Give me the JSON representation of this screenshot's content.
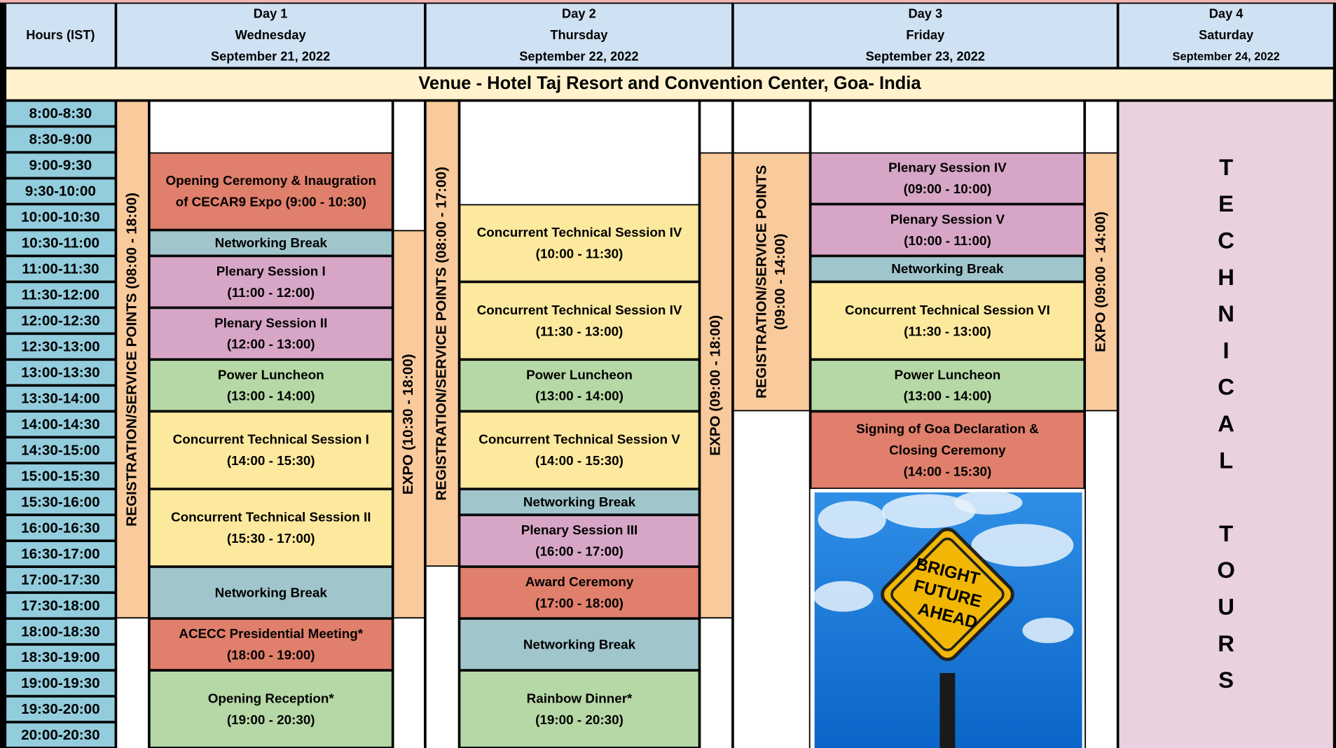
{
  "header": {
    "hours_label": "Hours (IST)",
    "days": [
      {
        "lines": [
          "Day 1",
          "Wednesday",
          "September 21, 2022"
        ]
      },
      {
        "lines": [
          "Day 2",
          "Thursday",
          "September 22, 2022"
        ]
      },
      {
        "lines": [
          "Day 3",
          "Friday",
          "September 23, 2022"
        ]
      },
      {
        "lines": [
          "Day 4",
          "Saturday",
          "September 24, 2022"
        ]
      }
    ]
  },
  "venue": "Venue - Hotel Taj Resort and Convention Center, Goa- India",
  "time_slots": [
    "8:00-8:30",
    "8:30-9:00",
    "9:00-9:30",
    "9:30-10:00",
    "10:00-10:30",
    "10:30-11:00",
    "11:00-11:30",
    "11:30-12:00",
    "12:00-12:30",
    "12:30-13:00",
    "13:00-13:30",
    "13:30-14:00",
    "14:00-14:30",
    "14:30-15:00",
    "15:00-15:30",
    "15:30-16:00",
    "16:00-16:30",
    "16:30-17:00",
    "17:00-17:30",
    "17:30-18:00",
    "18:00-18:30",
    "18:30-19:00",
    "19:00-19:30",
    "19:30-20:00",
    "20:00-20:30"
  ],
  "blocks": [
    {
      "lines": [
        "REGISTRATION/SERVICE POINTS (08:00 - 18:00)"
      ]
    },
    {
      "lines": [
        "Opening Ceremony & Inaugration",
        "of CECAR9 Expo (9:00 - 10:30)"
      ]
    },
    {
      "lines": [
        "Networking Break"
      ]
    },
    {
      "lines": [
        "Plenary Session I",
        "(11:00 - 12:00)"
      ]
    },
    {
      "lines": [
        "Plenary Session II",
        "(12:00 - 13:00)"
      ]
    },
    {
      "lines": [
        "Power Luncheon",
        "(13:00 - 14:00)"
      ]
    },
    {
      "lines": [
        "Concurrent Technical Session I",
        "(14:00 - 15:30)"
      ]
    },
    {
      "lines": [
        "Concurrent Technical Session II",
        "(15:30 - 17:00)"
      ]
    },
    {
      "lines": [
        "Networking Break"
      ]
    },
    {
      "lines": [
        "ACECC Presidential Meeting*",
        "(18:00 - 19:00)"
      ]
    },
    {
      "lines": [
        "Opening Reception*",
        "(19:00 - 20:30)"
      ]
    },
    {
      "lines": [
        "EXPO (10:30 - 18:00)"
      ]
    },
    {
      "lines": [
        "REGISTRATION/SERVICE POINTS (08:00 - 17:00)"
      ]
    },
    {
      "lines": [
        "Concurrent Technical Session IV",
        "(10:00 - 11:30)"
      ]
    },
    {
      "lines": [
        "Concurrent Technical Session IV",
        "(11:30 - 13:00)"
      ]
    },
    {
      "lines": [
        "Power Luncheon",
        "(13:00 - 14:00)"
      ]
    },
    {
      "lines": [
        "Concurrent Technical Session V",
        "(14:00 - 15:30)"
      ]
    },
    {
      "lines": [
        "Networking Break"
      ]
    },
    {
      "lines": [
        "Plenary Session III",
        "(16:00 - 17:00)"
      ]
    },
    {
      "lines": [
        "Award Ceremony",
        "(17:00 - 18:00)"
      ]
    },
    {
      "lines": [
        "Networking Break"
      ]
    },
    {
      "lines": [
        "Rainbow Dinner*",
        "(19:00 - 20:30)"
      ]
    },
    {
      "lines": [
        "EXPO (09:00 - 18:00)"
      ]
    },
    {
      "lines": [
        "REGISTRATION/SERVICE POINTS",
        "(09:00 - 14:00)"
      ]
    },
    {
      "lines": [
        "Plenary Session IV",
        "(09:00 - 10:00)"
      ]
    },
    {
      "lines": [
        "Plenary Session V",
        "(10:00 - 11:00)"
      ]
    },
    {
      "lines": [
        "Networking Break"
      ]
    },
    {
      "lines": [
        "Concurrent Technical Session VI",
        "(11:30 - 13:00)"
      ]
    },
    {
      "lines": [
        "Power Luncheon",
        "(13:00 - 14:00)"
      ]
    },
    {
      "lines": [
        "Signing of Goa Declaration &",
        "Closing Ceremony",
        "(14:00 - 15:30)"
      ]
    },
    {
      "lines": [
        "EXPO (09:00 - 14:00)"
      ]
    }
  ],
  "tours": "TECHNICAL TOURS",
  "sign": [
    "BRIGHT",
    "FUTURE",
    "AHEAD"
  ]
}
